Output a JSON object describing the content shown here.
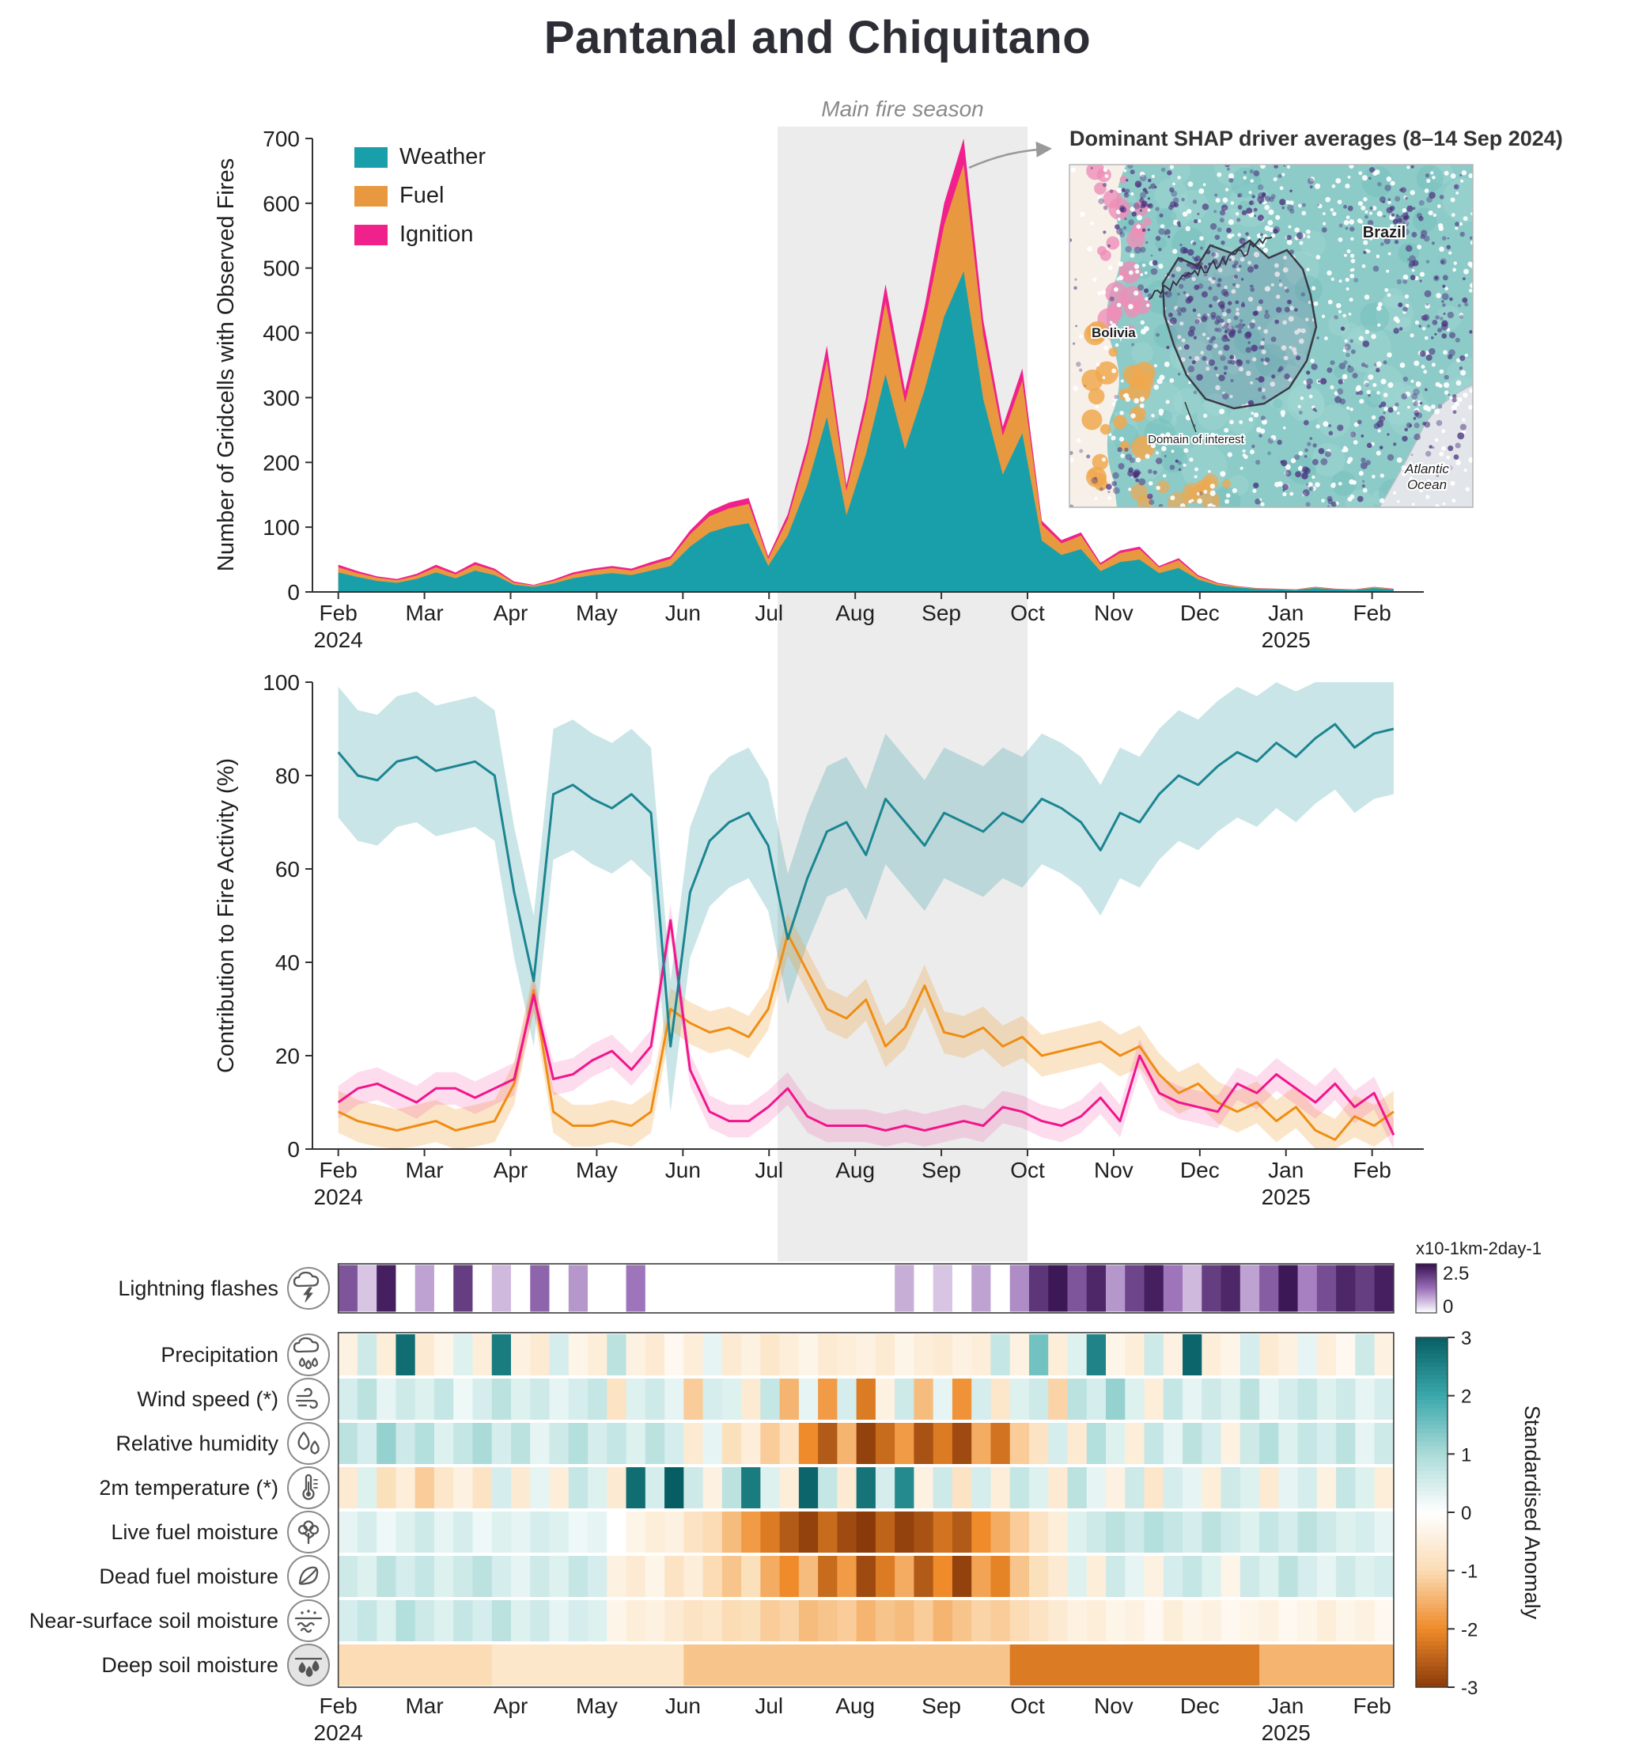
{
  "title": "Pantanal and Chiquitano",
  "annotations": {
    "fire_season_label": "Main fire season",
    "inset_title": "Dominant SHAP driver averages (8–14 Sep 2024)",
    "inset_labels": {
      "country_1": "Brazil",
      "country_2": "Bolivia",
      "ocean": "Atlantic Ocean",
      "domain": "Domain of interest"
    }
  },
  "colors": {
    "weather": "#199faa",
    "fuel": "#e8993f",
    "ignition": "#f0218b",
    "weather_line": "#1b8591",
    "fuel_line": "#ef8d13",
    "ignition_line": "#f2148c",
    "fire_season_band": "#ececec",
    "anomaly_scale": [
      "#8a3a0a",
      "#ef8b2a",
      "#fbdcb5",
      "#ffffff",
      "#abdbd8",
      "#3aa8ab",
      "#065e63"
    ],
    "lightning_scale": [
      "#ffffff",
      "#9a6fb8",
      "#35104f"
    ]
  },
  "chart_data": [
    {
      "type": "area",
      "id": "observed-fires",
      "stacked": true,
      "ylabel": "Number of Gridcells with Observed Fires",
      "ylim": [
        0,
        700
      ],
      "yticks": [
        0,
        100,
        200,
        300,
        400,
        500,
        600,
        700
      ],
      "x_tick_labels": [
        "Feb",
        "Mar",
        "Apr",
        "May",
        "Jun",
        "Jul",
        "Aug",
        "Sep",
        "Oct",
        "Nov",
        "Dec",
        "Jan",
        "Feb"
      ],
      "year_labels": [
        {
          "text": "2024",
          "month_index": 0
        },
        {
          "text": "2025",
          "month_index": 11
        }
      ],
      "x_months_span": 12.25,
      "fire_season_span_months": [
        5.1,
        8.0
      ],
      "series": [
        {
          "name": "Weather",
          "color": "#199faa",
          "values": [
            30,
            23,
            17,
            14,
            20,
            30,
            21,
            33,
            26,
            11,
            8,
            13,
            21,
            26,
            29,
            26,
            33,
            40,
            70,
            92,
            101,
            106,
            40,
            87,
            165,
            270,
            118,
            213,
            336,
            220,
            312,
            425,
            495,
            298,
            181,
            245,
            79,
            57,
            66,
            32,
            46,
            50,
            29,
            37,
            19,
            10,
            7,
            4.5,
            4,
            3,
            6,
            4,
            3,
            6,
            4
          ]
        },
        {
          "name": "Fuel",
          "color": "#e8993f",
          "values": [
            8,
            6,
            5,
            4,
            5,
            8,
            6,
            9,
            7,
            3,
            2,
            4,
            6,
            7,
            8,
            7,
            9,
            11,
            19,
            25,
            28,
            30,
            11,
            25,
            52,
            88,
            38,
            70,
            112,
            72,
            103,
            141,
            165,
            99,
            60,
            81,
            25,
            18,
            21,
            10,
            14,
            16,
            9,
            12,
            5,
            3,
            1.5,
            1,
            0.7,
            0.7,
            1.5,
            0.7,
            0.7,
            1.5,
            0.7
          ]
        },
        {
          "name": "Ignition",
          "color": "#f0218b",
          "values": [
            4,
            3,
            2,
            2,
            3,
            4,
            3,
            4,
            3,
            2,
            1,
            2,
            3,
            3,
            3,
            3,
            4,
            4,
            6,
            8,
            9,
            9,
            4,
            8,
            13,
            22,
            9,
            17,
            27,
            18,
            25,
            34,
            40,
            23,
            14,
            19,
            6,
            5,
            5,
            3,
            4,
            4,
            2,
            3,
            2,
            1,
            0.5,
            0.5,
            0.3,
            0.3,
            0.5,
            0.3,
            0.3,
            0.5,
            0.3
          ]
        }
      ]
    },
    {
      "type": "line",
      "id": "contribution",
      "ylabel": "Contribution to Fire Activity (%)",
      "ylim": [
        0,
        100
      ],
      "yticks": [
        0,
        20,
        40,
        60,
        80,
        100
      ],
      "series": [
        {
          "name": "Weather",
          "color": "#1b8591",
          "band_halfwidth": 14,
          "values": [
            85,
            80,
            79,
            83,
            84,
            81,
            82,
            83,
            80,
            55,
            36,
            76,
            78,
            75,
            73,
            76,
            72,
            22,
            55,
            66,
            70,
            72,
            65,
            45,
            58,
            68,
            70,
            63,
            75,
            70,
            65,
            72,
            70,
            68,
            72,
            70,
            75,
            73,
            70,
            64,
            72,
            70,
            76,
            80,
            78,
            82,
            85,
            83,
            87,
            84,
            88,
            91,
            86,
            89,
            90
          ]
        },
        {
          "name": "Fuel",
          "color": "#ef8d13",
          "band_halfwidth": 4.5,
          "values": [
            8,
            6,
            5,
            4,
            5,
            6,
            4,
            5,
            6,
            14,
            34,
            8,
            5,
            5,
            6,
            5,
            8,
            30,
            27,
            25,
            26,
            24,
            30,
            46,
            38,
            30,
            28,
            32,
            22,
            26,
            35,
            25,
            24,
            26,
            22,
            24,
            20,
            21,
            22,
            23,
            20,
            22,
            16,
            12,
            14,
            10,
            8,
            10,
            6,
            9,
            4,
            2,
            7,
            5,
            8
          ]
        },
        {
          "name": "Ignition",
          "color": "#f2148c",
          "band_halfwidth": 3.5,
          "values": [
            10,
            13,
            14,
            12,
            10,
            13,
            13,
            11,
            13,
            15,
            33,
            15,
            16,
            19,
            21,
            17,
            22,
            49,
            17,
            8,
            6,
            6,
            9,
            13,
            7,
            5,
            5,
            5,
            4,
            5,
            4,
            5,
            6,
            5,
            9,
            8,
            6,
            5,
            7,
            11,
            6,
            20,
            12,
            10,
            9,
            8,
            14,
            12,
            16,
            13,
            10,
            14,
            9,
            12,
            3
          ]
        }
      ]
    },
    {
      "type": "heatmap",
      "id": "driver-anomalies",
      "scales": {
        "lightning": {
          "min": 0,
          "max": 2.5,
          "tick_labels": [
            "2.5",
            "0"
          ],
          "unit": "x10-1km-2day-1"
        },
        "anomaly": {
          "min": -3,
          "max": 3,
          "ticks": [
            3,
            2,
            1,
            0,
            -1,
            -2,
            -3
          ],
          "label": "Standardised Anomaly"
        }
      },
      "rows": [
        {
          "label": "Lightning flashes",
          "icon": "lightning-cloud-icon",
          "scale": "lightning",
          "values": [
            1.6,
            0.5,
            2.3,
            0,
            0.8,
            0,
            1.9,
            0,
            0.6,
            0,
            1.4,
            0,
            0.9,
            0,
            0,
            1.2,
            0,
            0,
            0,
            0,
            0,
            0,
            0,
            0,
            0,
            0,
            0,
            0,
            0,
            0.7,
            0,
            0.5,
            0,
            0.8,
            0,
            1.0,
            2.0,
            2.4,
            1.6,
            2.2,
            0.9,
            1.8,
            2.3,
            1.2,
            0.6,
            1.9,
            2.2,
            0.8,
            1.5,
            2.4,
            1.1,
            1.7,
            2.2,
            1.9,
            2.3
          ]
        },
        {
          "label": "Precipitation",
          "icon": "rain-cloud-icon",
          "scale": "anomaly",
          "values": [
            -0.4,
            0.6,
            -0.5,
            2.8,
            -0.6,
            -0.3,
            0.4,
            -0.5,
            2.6,
            -0.4,
            -0.6,
            0.5,
            -0.3,
            -0.5,
            0.8,
            -0.4,
            -0.6,
            -0.2,
            -0.5,
            0.3,
            -0.6,
            -0.4,
            -0.7,
            -0.5,
            -0.3,
            -0.6,
            -0.5,
            -0.4,
            -0.6,
            -0.3,
            -0.5,
            -0.6,
            -0.4,
            -0.5,
            0.7,
            -0.4,
            1.5,
            -0.5,
            0.4,
            2.5,
            -0.3,
            -0.5,
            0.6,
            -0.4,
            2.9,
            -0.5,
            -0.3,
            0.5,
            -0.6,
            -0.4,
            0.3,
            -0.5,
            -0.2,
            0.6,
            -0.4
          ]
        },
        {
          "label": "Wind speed (*)",
          "icon": "wind-icon",
          "scale": "anomaly",
          "values": [
            0.5,
            0.8,
            0.3,
            0.6,
            0.4,
            0.7,
            0.2,
            0.5,
            0.8,
            0.4,
            0.6,
            0.3,
            0.5,
            0.7,
            -0.8,
            0.4,
            0.6,
            0.3,
            -1.2,
            0.5,
            0.4,
            -0.6,
            0.7,
            -1.5,
            0.3,
            -1.8,
            0.5,
            -2.2,
            -0.4,
            0.6,
            -1.4,
            0.3,
            -1.9,
            0.5,
            -0.7,
            0.4,
            0.6,
            -1.1,
            0.8,
            0.5,
            1.2,
            0.4,
            -0.5,
            0.7,
            0.3,
            0.6,
            0.4,
            0.8,
            0.3,
            0.5,
            0.7,
            0.4,
            0.6,
            0.3,
            0.5
          ]
        },
        {
          "label": "Relative humidity",
          "icon": "droplets-icon",
          "scale": "anomaly",
          "values": [
            0.8,
            0.5,
            1.2,
            0.6,
            0.9,
            0.4,
            0.7,
            1.0,
            0.5,
            0.8,
            0.3,
            0.6,
            0.9,
            0.5,
            0.7,
            0.4,
            0.8,
            0.5,
            -0.6,
            0.3,
            -0.9,
            -0.5,
            -1.2,
            -0.8,
            -2.0,
            -2.6,
            -1.5,
            -2.9,
            -2.4,
            -1.8,
            -2.7,
            -2.2,
            -2.8,
            -1.6,
            -2.3,
            -1.2,
            -0.8,
            0.5,
            -0.6,
            0.9,
            0.4,
            -0.5,
            0.7,
            0.3,
            0.8,
            0.5,
            -0.4,
            0.6,
            0.9,
            0.4,
            0.7,
            0.5,
            0.8,
            0.3,
            0.6
          ]
        },
        {
          "label": "2m temperature (*)",
          "icon": "thermometer-icon",
          "scale": "anomaly",
          "values": [
            -0.6,
            0.4,
            -0.9,
            -0.5,
            -1.2,
            -0.7,
            -0.4,
            -0.8,
            0.5,
            -0.6,
            0.3,
            -0.5,
            0.7,
            0.4,
            -0.6,
            2.8,
            0.5,
            3.0,
            0.6,
            -0.4,
            0.8,
            2.6,
            0.4,
            -0.5,
            2.9,
            0.7,
            -0.6,
            2.7,
            0.5,
            2.4,
            -0.4,
            0.6,
            -0.8,
            0.5,
            -0.5,
            0.7,
            0.4,
            -0.6,
            0.8,
            0.3,
            -0.4,
            0.6,
            -0.7,
            0.5,
            0.3,
            -0.5,
            0.6,
            0.4,
            -0.6,
            0.3,
            0.5,
            -0.4,
            0.7,
            0.4,
            -0.5
          ]
        },
        {
          "label": "Live fuel moisture",
          "icon": "plant-icon",
          "scale": "anomaly",
          "values": [
            0.3,
            0.5,
            0.2,
            0.4,
            0.6,
            0.3,
            0.5,
            0.2,
            0.4,
            0.3,
            0.5,
            0.4,
            0.2,
            0.3,
            0.0,
            -0.3,
            -0.5,
            -0.4,
            -0.8,
            -1.0,
            -1.4,
            -1.8,
            -2.2,
            -2.6,
            -2.9,
            -2.4,
            -2.8,
            -3.0,
            -2.5,
            -2.9,
            -2.7,
            -2.3,
            -2.6,
            -2.0,
            -1.6,
            -1.2,
            -0.8,
            -0.5,
            0.4,
            0.6,
            0.8,
            0.6,
            0.9,
            0.7,
            0.5,
            0.8,
            0.6,
            0.4,
            0.7,
            0.5,
            0.8,
            0.6,
            0.4,
            0.5,
            0.3
          ]
        },
        {
          "label": "Dead fuel moisture",
          "icon": "leaf-icon",
          "scale": "anomaly",
          "values": [
            0.6,
            0.4,
            0.8,
            0.5,
            0.7,
            0.4,
            0.6,
            0.8,
            0.5,
            0.3,
            0.6,
            0.4,
            0.7,
            0.5,
            -0.4,
            -0.6,
            -0.3,
            -0.8,
            -0.5,
            -1.0,
            -1.3,
            -0.9,
            -1.6,
            -2.0,
            -1.4,
            -2.4,
            -1.8,
            -2.8,
            -2.2,
            -1.6,
            -2.6,
            -2.0,
            -2.9,
            -1.7,
            -2.1,
            -1.3,
            -0.9,
            -0.6,
            0.4,
            -0.5,
            0.6,
            0.3,
            -0.4,
            0.5,
            0.7,
            0.4,
            -0.3,
            0.6,
            0.4,
            0.8,
            0.5,
            0.3,
            0.6,
            0.4,
            0.5
          ]
        },
        {
          "label": "Near-surface soil moisture",
          "icon": "soil-surface-icon",
          "scale": "anomaly",
          "values": [
            0.5,
            0.7,
            0.4,
            0.9,
            0.6,
            0.4,
            0.7,
            0.5,
            0.8,
            0.4,
            0.6,
            0.3,
            0.5,
            0.4,
            -0.3,
            -0.5,
            -0.4,
            -0.6,
            -0.8,
            -0.7,
            -1.0,
            -0.9,
            -1.2,
            -1.1,
            -1.4,
            -1.3,
            -1.2,
            -1.5,
            -1.3,
            -1.4,
            -1.2,
            -1.5,
            -1.3,
            -1.1,
            -1.2,
            -1.0,
            -0.8,
            -0.6,
            -0.4,
            -0.5,
            -0.3,
            -0.4,
            -0.2,
            -0.5,
            -0.3,
            -0.4,
            -0.2,
            -0.3,
            -0.4,
            -0.2,
            -0.3,
            -0.5,
            -0.3,
            -0.4,
            -0.2
          ]
        },
        {
          "label": "Deep soil moisture",
          "icon": "soil-deep-icon",
          "scale": "anomaly",
          "values": [
            -1.0,
            -1.0,
            -1.0,
            -1.0,
            -1.0,
            -1.0,
            -1.0,
            -1.0,
            -0.7,
            -0.7,
            -0.7,
            -0.7,
            -0.7,
            -0.7,
            -0.7,
            -0.7,
            -0.7,
            -0.7,
            -1.3,
            -1.3,
            -1.3,
            -1.3,
            -1.3,
            -1.3,
            -1.3,
            -1.3,
            -1.3,
            -1.3,
            -1.3,
            -1.3,
            -1.3,
            -1.3,
            -1.3,
            -1.3,
            -1.3,
            -2.2,
            -2.2,
            -2.2,
            -2.2,
            -2.2,
            -2.2,
            -2.2,
            -2.2,
            -2.2,
            -2.2,
            -2.2,
            -2.2,
            -2.2,
            -1.5,
            -1.5,
            -1.5,
            -1.5,
            -1.5,
            -1.5,
            -1.5
          ]
        }
      ]
    }
  ]
}
